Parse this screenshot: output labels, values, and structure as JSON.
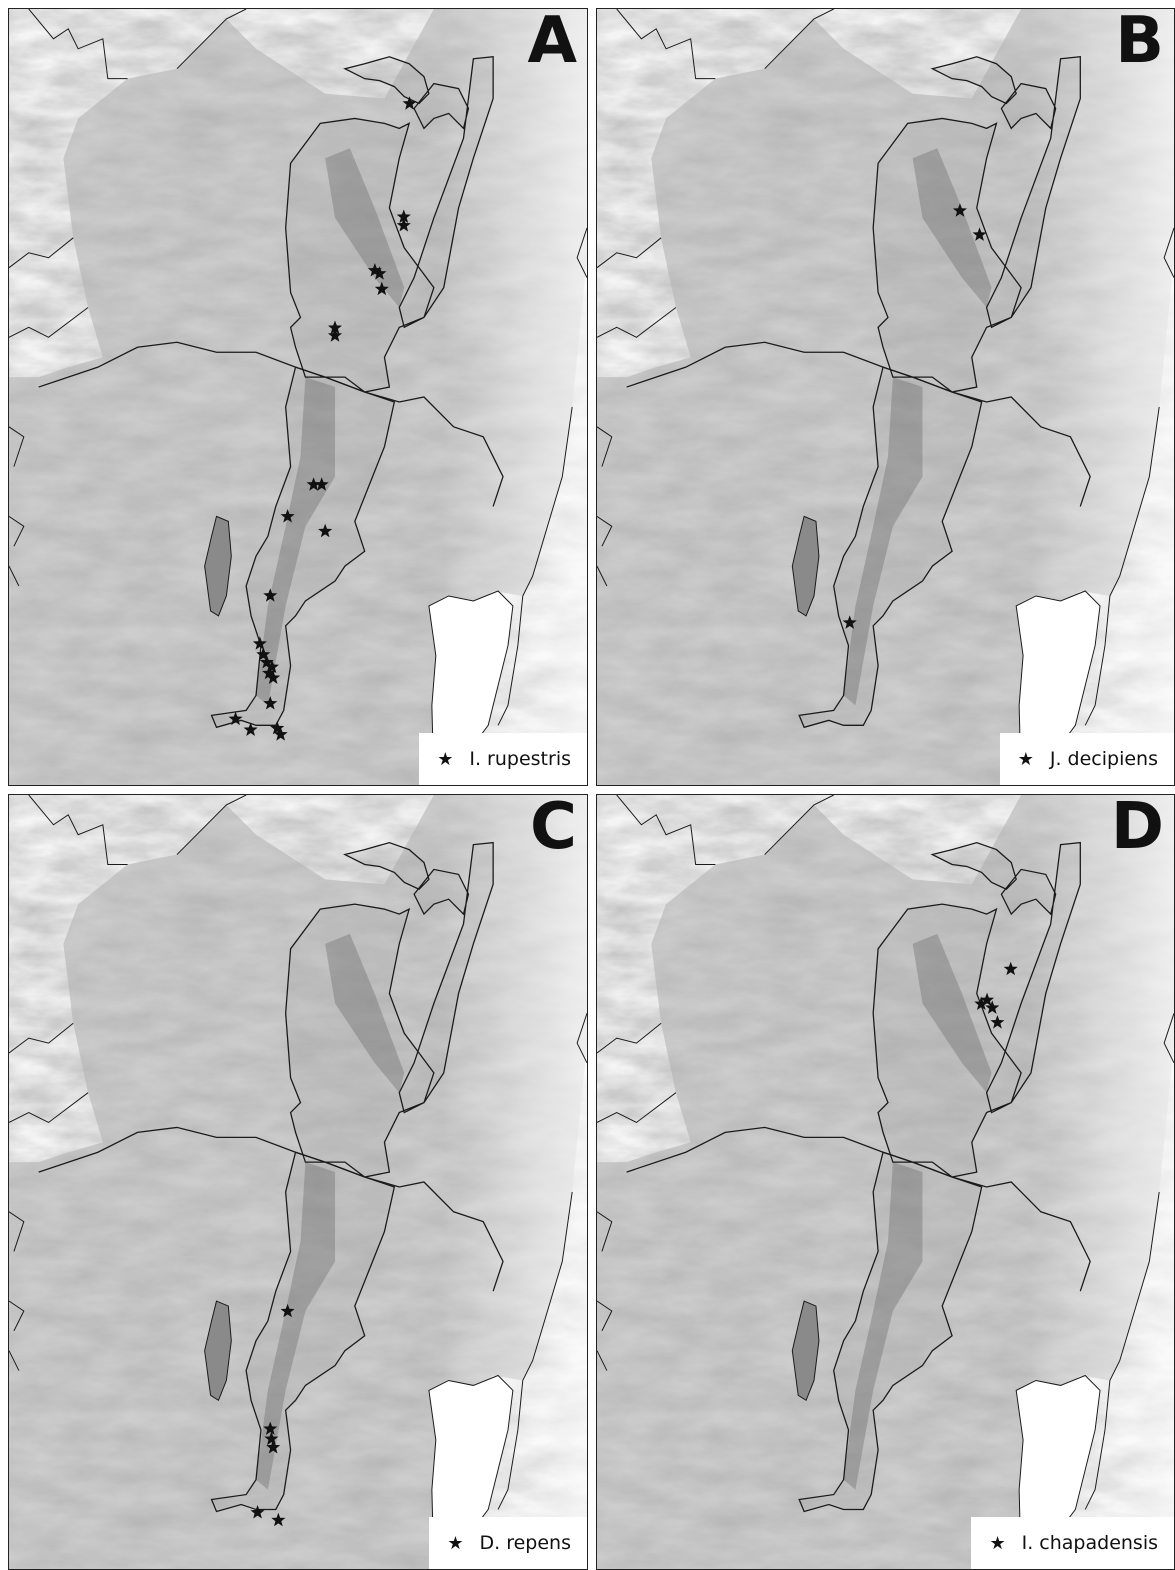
{
  "panels": [
    {
      "id": "A",
      "letter": "A",
      "legend_label": "I. rupestris",
      "legend_icon": "star-icon",
      "points": [
        [
          0.693,
          0.122
        ],
        [
          0.683,
          0.268
        ],
        [
          0.683,
          0.279
        ],
        [
          0.633,
          0.337
        ],
        [
          0.641,
          0.341
        ],
        [
          0.645,
          0.361
        ],
        [
          0.564,
          0.411
        ],
        [
          0.564,
          0.421
        ],
        [
          0.527,
          0.613
        ],
        [
          0.541,
          0.613
        ],
        [
          0.482,
          0.654
        ],
        [
          0.547,
          0.673
        ],
        [
          0.452,
          0.756
        ],
        [
          0.434,
          0.818
        ],
        [
          0.44,
          0.832
        ],
        [
          0.446,
          0.842
        ],
        [
          0.455,
          0.848
        ],
        [
          0.45,
          0.856
        ],
        [
          0.457,
          0.862
        ],
        [
          0.452,
          0.895
        ],
        [
          0.464,
          0.927
        ],
        [
          0.47,
          0.935
        ],
        [
          0.392,
          0.915
        ],
        [
          0.418,
          0.929
        ]
      ]
    },
    {
      "id": "B",
      "letter": "B",
      "legend_label": "J. decipiens",
      "legend_icon": "star-icon",
      "points": [
        [
          0.629,
          0.26
        ],
        [
          0.663,
          0.291
        ],
        [
          0.438,
          0.791
        ]
      ]
    },
    {
      "id": "C",
      "letter": "C",
      "legend_label": "D. repens",
      "legend_icon": "star-icon",
      "points": [
        [
          0.482,
          0.667
        ],
        [
          0.452,
          0.819
        ],
        [
          0.454,
          0.832
        ],
        [
          0.457,
          0.843
        ],
        [
          0.43,
          0.927
        ],
        [
          0.466,
          0.937
        ]
      ]
    },
    {
      "id": "D",
      "letter": "D",
      "legend_label": "I. chapadensis",
      "legend_icon": "star-icon",
      "points": [
        [
          0.717,
          0.225
        ],
        [
          0.666,
          0.27
        ],
        [
          0.676,
          0.265
        ],
        [
          0.685,
          0.275
        ],
        [
          0.694,
          0.294
        ]
      ]
    }
  ],
  "colors": {
    "terrain_light": "#f3f3f3",
    "terrain_mid": "#bcbcbc",
    "terrain_dark": "#6a6a6a",
    "outline": "#1a1a1a",
    "star": "#111111"
  }
}
